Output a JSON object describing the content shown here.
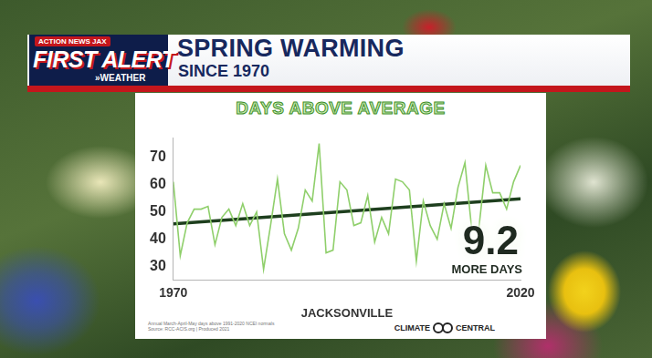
{
  "header": {
    "logo": [
      "ACTION NEWS JAX",
      "FIRST ALERT",
      "»WEATHER"
    ],
    "title": "SPRING WARMING",
    "subtitle": "SINCE 1970"
  },
  "chart_data": {
    "type": "line",
    "title": "DAYS ABOVE AVERAGE",
    "x_label": "JACKSONVILLE",
    "x": [
      1970,
      1971,
      1972,
      1973,
      1974,
      1975,
      1976,
      1977,
      1978,
      1979,
      1980,
      1981,
      1982,
      1983,
      1984,
      1985,
      1986,
      1987,
      1988,
      1989,
      1990,
      1991,
      1992,
      1993,
      1994,
      1995,
      1996,
      1997,
      1998,
      1999,
      2000,
      2001,
      2002,
      2003,
      2004,
      2005,
      2006,
      2007,
      2008,
      2009,
      2010,
      2011,
      2012,
      2013,
      2014,
      2015,
      2016,
      2017,
      2018,
      2019,
      2020
    ],
    "series": [
      {
        "color": "#8fcf6b",
        "values": [
          61,
          34,
          46,
          51,
          51,
          52,
          38,
          48,
          51,
          45,
          53,
          45,
          50,
          29,
          45,
          62,
          42,
          36,
          44,
          58,
          54,
          75,
          35,
          36,
          61,
          58,
          45,
          46,
          56,
          39,
          48,
          42,
          62,
          61,
          58,
          32,
          54,
          45,
          40,
          53,
          44,
          59,
          68,
          43,
          44,
          67,
          57,
          57,
          51,
          61,
          67
        ]
      },
      {
        "color": "#1e3f1e",
        "values": [
          45.6,
          null,
          null,
          null,
          null,
          null,
          null,
          null,
          null,
          null,
          null,
          null,
          null,
          null,
          null,
          null,
          null,
          null,
          null,
          null,
          null,
          null,
          null,
          null,
          null,
          null,
          null,
          null,
          null,
          null,
          null,
          null,
          null,
          null,
          null,
          null,
          null,
          null,
          null,
          null,
          null,
          null,
          null,
          null,
          null,
          null,
          null,
          null,
          null,
          null,
          54.8
        ]
      }
    ],
    "xlim": [
      1970,
      2020
    ],
    "xticks": [
      1970,
      2020
    ],
    "ylim": [
      25,
      77
    ],
    "yticks": [
      30,
      40,
      50,
      60,
      70
    ],
    "grid": false,
    "annotations": [
      "9.2",
      "MORE DAYS"
    ]
  },
  "footer": {
    "source": [
      "Annual March-April-May days above 1991-2020 NCEI normals",
      "Source: RCC-ACIS.org | Produced 2021"
    ],
    "brand": [
      "CLIMATE",
      "CENTRAL"
    ]
  }
}
